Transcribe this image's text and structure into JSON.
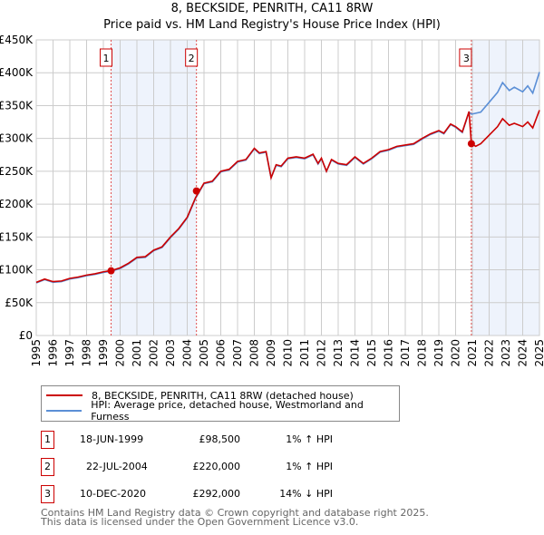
{
  "chart_data": {
    "type": "line",
    "title": "8, BECKSIDE, PENRITH, CA11 8RW",
    "subtitle": "Price paid vs. HM Land Registry's House Price Index (HPI)",
    "xlim": [
      1995,
      2025
    ],
    "ylim": [
      0,
      450000
    ],
    "y_ticks": [
      {
        "v": 0,
        "label": "£0"
      },
      {
        "v": 50000,
        "label": "£50K"
      },
      {
        "v": 100000,
        "label": "£100K"
      },
      {
        "v": 150000,
        "label": "£150K"
      },
      {
        "v": 200000,
        "label": "£200K"
      },
      {
        "v": 250000,
        "label": "£250K"
      },
      {
        "v": 300000,
        "label": "£300K"
      },
      {
        "v": 350000,
        "label": "£350K"
      },
      {
        "v": 400000,
        "label": "£400K"
      },
      {
        "v": 450000,
        "label": "£450K"
      }
    ],
    "x_ticks": [
      "1995",
      "1996",
      "1997",
      "1998",
      "1999",
      "2000",
      "2001",
      "2002",
      "2003",
      "2004",
      "2005",
      "2006",
      "2007",
      "2008",
      "2009",
      "2010",
      "2011",
      "2012",
      "2013",
      "2014",
      "2015",
      "2016",
      "2017",
      "2018",
      "2019",
      "2020",
      "2021",
      "2022",
      "2023",
      "2024",
      "2025"
    ],
    "grid": true,
    "series": [
      {
        "name": "HPI: Average price, detached house, Westmorland and Furness",
        "color": "#5b8fd6",
        "points": [
          [
            1995,
            80
          ],
          [
            1995.5,
            85
          ],
          [
            1996,
            81
          ],
          [
            1996.5,
            82
          ],
          [
            1997,
            86
          ],
          [
            1997.5,
            88
          ],
          [
            1998,
            91
          ],
          [
            1998.5,
            93
          ],
          [
            1999,
            96
          ],
          [
            1999.5,
            98
          ],
          [
            2000,
            102
          ],
          [
            2000.5,
            109
          ],
          [
            2001,
            118
          ],
          [
            2001.5,
            119
          ],
          [
            2002,
            129
          ],
          [
            2002.5,
            134
          ],
          [
            2003,
            149
          ],
          [
            2003.5,
            162
          ],
          [
            2004,
            179
          ],
          [
            2004.5,
            209
          ],
          [
            2005,
            231
          ],
          [
            2005.5,
            234
          ],
          [
            2006,
            249
          ],
          [
            2006.5,
            252
          ],
          [
            2007,
            264
          ],
          [
            2007.5,
            267
          ],
          [
            2008,
            284
          ],
          [
            2008.3,
            277
          ],
          [
            2008.7,
            279
          ],
          [
            2009,
            240
          ],
          [
            2009.3,
            259
          ],
          [
            2009.6,
            257
          ],
          [
            2010,
            269
          ],
          [
            2010.5,
            271
          ],
          [
            2011,
            269
          ],
          [
            2011.5,
            275
          ],
          [
            2011.8,
            261
          ],
          [
            2012,
            269
          ],
          [
            2012.3,
            250
          ],
          [
            2012.6,
            267
          ],
          [
            2013,
            261
          ],
          [
            2013.5,
            259
          ],
          [
            2014,
            271
          ],
          [
            2014.5,
            261
          ],
          [
            2015,
            269
          ],
          [
            2015.5,
            279
          ],
          [
            2016,
            282
          ],
          [
            2016.5,
            287
          ],
          [
            2017,
            289
          ],
          [
            2017.5,
            291
          ],
          [
            2018,
            299
          ],
          [
            2018.5,
            306
          ],
          [
            2019,
            311
          ],
          [
            2019.3,
            307
          ],
          [
            2019.7,
            321
          ],
          [
            2020,
            317
          ],
          [
            2020.4,
            309
          ],
          [
            2020.8,
            340
          ],
          [
            2020.95,
            337
          ],
          [
            2021.5,
            340
          ],
          [
            2022,
            355
          ],
          [
            2022.5,
            370
          ],
          [
            2022.8,
            385
          ],
          [
            2023.2,
            373
          ],
          [
            2023.5,
            378
          ],
          [
            2024,
            371
          ],
          [
            2024.3,
            380
          ],
          [
            2024.6,
            369
          ],
          [
            2025,
            401
          ]
        ]
      },
      {
        "name": "8, BECKSIDE, PENRITH, CA11 8RW (detached house)",
        "color": "#cc0000",
        "points": [
          [
            1995,
            81
          ],
          [
            1995.5,
            86
          ],
          [
            1996,
            82
          ],
          [
            1996.5,
            83
          ],
          [
            1997,
            87
          ],
          [
            1997.5,
            89
          ],
          [
            1998,
            92
          ],
          [
            1998.5,
            94
          ],
          [
            1999,
            97
          ],
          [
            1999.5,
            99
          ],
          [
            2000,
            103
          ],
          [
            2000.5,
            110
          ],
          [
            2001,
            119
          ],
          [
            2001.5,
            120
          ],
          [
            2002,
            130
          ],
          [
            2002.5,
            135
          ],
          [
            2003,
            150
          ],
          [
            2003.5,
            163
          ],
          [
            2004,
            180
          ],
          [
            2004.5,
            210
          ],
          [
            2005,
            232
          ],
          [
            2005.5,
            235
          ],
          [
            2006,
            250
          ],
          [
            2006.5,
            253
          ],
          [
            2007,
            265
          ],
          [
            2007.5,
            268
          ],
          [
            2008,
            285
          ],
          [
            2008.3,
            278
          ],
          [
            2008.7,
            280
          ],
          [
            2009,
            240
          ],
          [
            2009.3,
            260
          ],
          [
            2009.6,
            258
          ],
          [
            2010,
            270
          ],
          [
            2010.5,
            272
          ],
          [
            2011,
            270
          ],
          [
            2011.5,
            276
          ],
          [
            2011.8,
            262
          ],
          [
            2012,
            270
          ],
          [
            2012.3,
            250
          ],
          [
            2012.6,
            268
          ],
          [
            2013,
            262
          ],
          [
            2013.5,
            260
          ],
          [
            2014,
            272
          ],
          [
            2014.5,
            262
          ],
          [
            2015,
            270
          ],
          [
            2015.5,
            280
          ],
          [
            2016,
            283
          ],
          [
            2016.5,
            288
          ],
          [
            2017,
            290
          ],
          [
            2017.5,
            292
          ],
          [
            2018,
            300
          ],
          [
            2018.5,
            307
          ],
          [
            2019,
            312
          ],
          [
            2019.3,
            308
          ],
          [
            2019.7,
            322
          ],
          [
            2020,
            318
          ],
          [
            2020.4,
            310
          ],
          [
            2020.8,
            341
          ],
          [
            2020.94,
            292
          ],
          [
            2021.2,
            288
          ],
          [
            2021.5,
            292
          ],
          [
            2022,
            305
          ],
          [
            2022.5,
            318
          ],
          [
            2022.8,
            330
          ],
          [
            2023.2,
            320
          ],
          [
            2023.5,
            323
          ],
          [
            2024,
            318
          ],
          [
            2024.3,
            325
          ],
          [
            2024.6,
            316
          ],
          [
            2025,
            343
          ]
        ]
      }
    ],
    "sales": [
      {
        "label": "1",
        "x": 1999.46,
        "value": 98500
      },
      {
        "label": "2",
        "x": 2004.55,
        "value": 220000
      },
      {
        "label": "3",
        "x": 2020.94,
        "value": 292000
      }
    ],
    "legend_position": "below"
  },
  "sales_table": [
    {
      "num": "1",
      "date": "18-JUN-1999",
      "price": "£98,500",
      "hpi": "1% ↑ HPI"
    },
    {
      "num": "2",
      "date": "22-JUL-2004",
      "price": "£220,000",
      "hpi": "1% ↑ HPI"
    },
    {
      "num": "3",
      "date": "10-DEC-2020",
      "price": "£292,000",
      "hpi": "14% ↓ HPI"
    }
  ],
  "footer": {
    "line1": "Contains HM Land Registry data © Crown copyright and database right 2025.",
    "line2": "This data is licensed under the Open Government Licence v3.0."
  }
}
